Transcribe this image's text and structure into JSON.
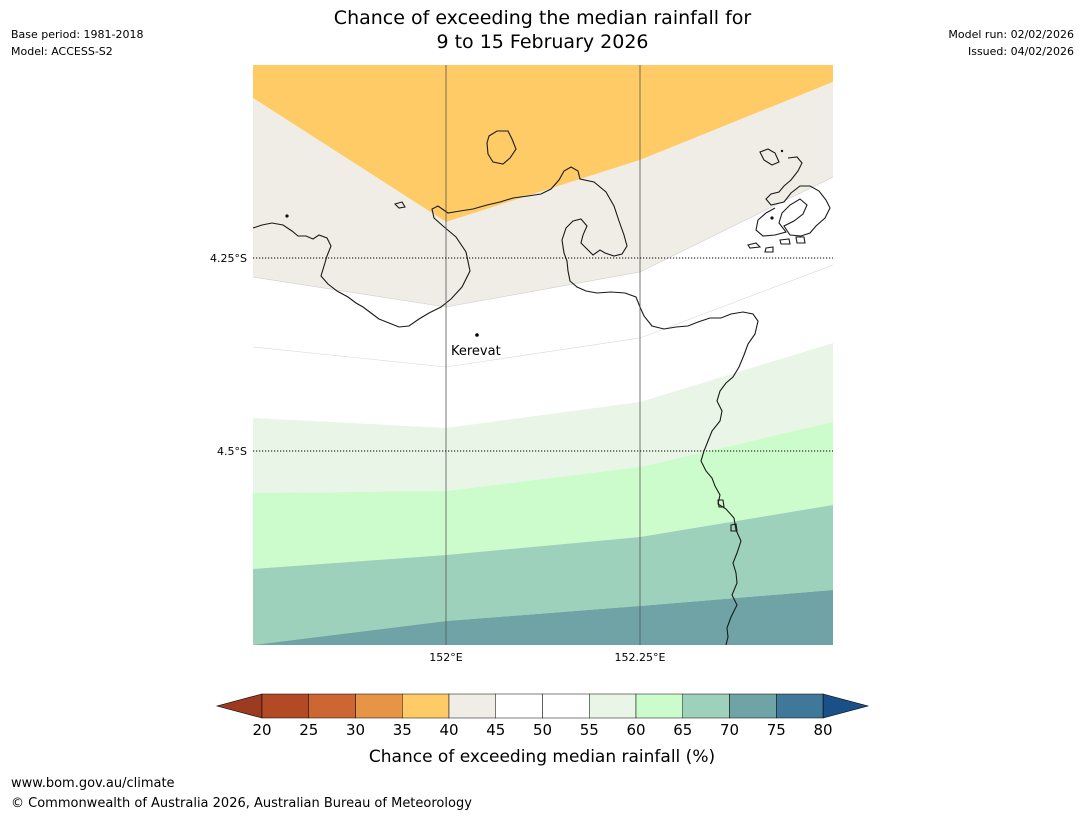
{
  "header": {
    "base_period": "Base period: 1981-2018",
    "model": "Model: ACCESS-S2",
    "model_run": "Model run: 02/02/2026",
    "issued": "Issued: 04/02/2026",
    "title_line1": "Chance of exceeding the median rainfall for",
    "title_line2": "9 to 15 February 2026"
  },
  "map": {
    "place_label": "Kerevat",
    "lat_labels": [
      "4.25°S",
      "4.5°S"
    ],
    "lon_labels": [
      "152°E",
      "152.25°E"
    ],
    "probability_bands_percent": [
      {
        "range": "35-40",
        "location": "north (top of map)"
      },
      {
        "range": "40-45",
        "location": "northern band across Gazelle Peninsula"
      },
      {
        "range": "45-55",
        "location": "central band around Kerevat"
      },
      {
        "range": "55-60",
        "location": "south-central band"
      },
      {
        "range": "60-65",
        "location": "southern band"
      },
      {
        "range": "65-70",
        "location": "far south"
      },
      {
        "range": "70-75",
        "location": "bottom edge"
      }
    ]
  },
  "colorbar": {
    "ticks": [
      "20",
      "25",
      "30",
      "35",
      "40",
      "45",
      "50",
      "55",
      "60",
      "65",
      "70",
      "75",
      "80"
    ],
    "colors": [
      "#b34a26",
      "#cc6633",
      "#e59545",
      "#fecb66",
      "#f0ece6",
      "#ffffff",
      "#ffffff",
      "#e8f5e7",
      "#ccfccb",
      "#9ed1bb",
      "#6fa3a6",
      "#3f7898"
    ],
    "under_color": "#9c3b21",
    "over_color": "#1a5088",
    "label": "Chance of exceeding median rainfall (%)"
  },
  "footer": {
    "url": "www.bom.gov.au/climate",
    "copyright": "© Commonwealth of Australia 2026, Australian Bureau of Meteorology"
  }
}
